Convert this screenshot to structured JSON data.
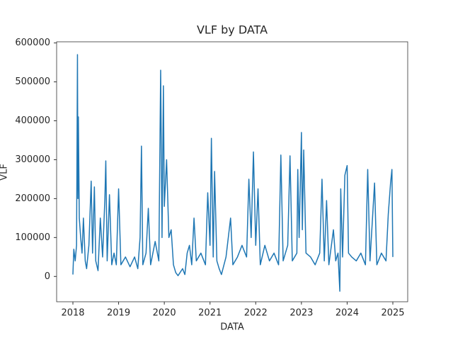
{
  "chart_data": {
    "type": "line",
    "title": "VLF by DATA",
    "x_label": "DATA",
    "y_label": "VLF",
    "x": [
      2018.0,
      2018.02,
      2018.05,
      2018.08,
      2018.1,
      2018.11,
      2018.12,
      2018.14,
      2018.17,
      2018.2,
      2018.23,
      2018.27,
      2018.3,
      2018.35,
      2018.4,
      2018.43,
      2018.47,
      2018.5,
      2018.55,
      2018.6,
      2018.65,
      2018.7,
      2018.72,
      2018.75,
      2018.8,
      2018.85,
      2018.9,
      2018.95,
      2019.0,
      2019.05,
      2019.15,
      2019.25,
      2019.35,
      2019.42,
      2019.47,
      2019.5,
      2019.53,
      2019.6,
      2019.65,
      2019.7,
      2019.8,
      2019.88,
      2019.92,
      2019.95,
      2019.98,
      2020.0,
      2020.05,
      2020.1,
      2020.15,
      2020.2,
      2020.25,
      2020.3,
      2020.4,
      2020.45,
      2020.5,
      2020.55,
      2020.6,
      2020.65,
      2020.7,
      2020.8,
      2020.9,
      2020.95,
      2021.0,
      2021.03,
      2021.07,
      2021.1,
      2021.15,
      2021.2,
      2021.25,
      2021.35,
      2021.45,
      2021.5,
      2021.6,
      2021.7,
      2021.8,
      2021.85,
      2021.9,
      2021.95,
      2022.0,
      2022.05,
      2022.1,
      2022.2,
      2022.3,
      2022.4,
      2022.5,
      2022.55,
      2022.6,
      2022.7,
      2022.75,
      2022.8,
      2022.9,
      2022.92,
      2022.95,
      2023.0,
      2023.02,
      2023.05,
      2023.1,
      2023.2,
      2023.3,
      2023.4,
      2023.45,
      2023.5,
      2023.55,
      2023.6,
      2023.7,
      2023.75,
      2023.8,
      2023.84,
      2023.86,
      2023.9,
      2023.95,
      2024.0,
      2024.03,
      2024.1,
      2024.2,
      2024.3,
      2024.4,
      2024.45,
      2024.5,
      2024.6,
      2024.65,
      2024.75,
      2024.85,
      2024.9,
      2024.95,
      2024.98,
      2025.0
    ],
    "series": [
      {
        "name": "VLF",
        "color": "#1f77b4",
        "values": [
          5000,
          70000,
          40000,
          80000,
          570000,
          200000,
          410000,
          150000,
          100000,
          60000,
          150000,
          40000,
          20000,
          80000,
          245000,
          60000,
          230000,
          40000,
          15000,
          150000,
          50000,
          200000,
          297000,
          40000,
          210000,
          30000,
          60000,
          30000,
          225000,
          30000,
          50000,
          25000,
          50000,
          20000,
          100000,
          335000,
          30000,
          60000,
          175000,
          30000,
          90000,
          40000,
          530000,
          100000,
          490000,
          180000,
          300000,
          100000,
          120000,
          30000,
          10000,
          2000,
          20000,
          5000,
          60000,
          80000,
          30000,
          150000,
          40000,
          60000,
          30000,
          215000,
          80000,
          355000,
          50000,
          270000,
          40000,
          20000,
          5000,
          50000,
          150000,
          30000,
          50000,
          80000,
          50000,
          250000,
          100000,
          320000,
          80000,
          225000,
          30000,
          80000,
          40000,
          60000,
          30000,
          312000,
          40000,
          80000,
          310000,
          40000,
          60000,
          275000,
          100000,
          370000,
          120000,
          325000,
          60000,
          50000,
          30000,
          60000,
          250000,
          40000,
          195000,
          30000,
          120000,
          40000,
          60000,
          -38000,
          225000,
          50000,
          260000,
          285000,
          60000,
          50000,
          40000,
          60000,
          30000,
          275000,
          40000,
          240000,
          30000,
          60000,
          40000,
          160000,
          240000,
          275000,
          50000
        ]
      }
    ],
    "xlim": [
      2017.644,
      2025.325
    ],
    "xticks": [
      2018,
      2019,
      2020,
      2021,
      2022,
      2023,
      2024,
      2025
    ],
    "ylim": [
      -65000,
      603000
    ],
    "yticks": [
      0,
      100000,
      200000,
      300000,
      400000,
      500000,
      600000
    ],
    "grid": false
  }
}
